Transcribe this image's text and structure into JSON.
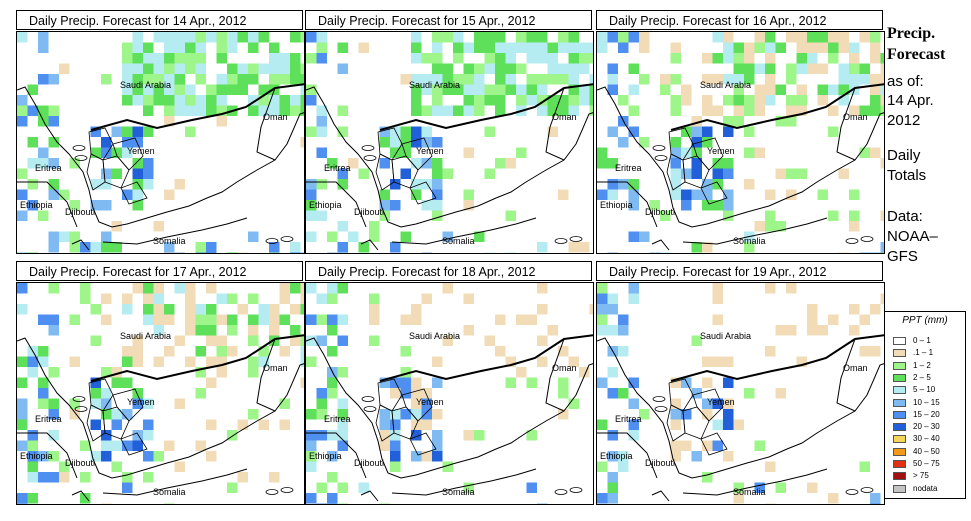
{
  "panels": [
    {
      "title": "Daily Precip. Forecast for  14 Apr., 2012",
      "day": 1
    },
    {
      "title": "Daily Precip. Forecast for  15 Apr., 2012",
      "day": 2
    },
    {
      "title": "Daily Precip. Forecast for  16 Apr., 2012",
      "day": 3
    },
    {
      "title": "Daily Precip. Forecast for  17 Apr., 2012",
      "day": 4
    },
    {
      "title": "Daily Precip. Forecast for  18 Apr., 2012",
      "day": 5
    },
    {
      "title": "Daily Precip. Forecast for  19 Apr., 2012",
      "day": 6
    }
  ],
  "places": {
    "saudi": "Saudi Arabia",
    "oman": "Oman",
    "yemen": "Yemen",
    "eritrea": "Eritrea",
    "ethiopia": "Ethiopia",
    "djibouti": "Djibouti",
    "somalia": "Somalia"
  },
  "side": {
    "title1": "Precip.",
    "title2": "Forecast",
    "asof": "as of:",
    "date1": "14 Apr.",
    "date2": "2012",
    "daily": "Daily",
    "totals": "Totals",
    "data_label": "Data:",
    "source1": "NOAA–",
    "source2": "GFS"
  },
  "legend": {
    "title": "PPT (mm)",
    "items": [
      {
        "label": "0 – 1",
        "color": "#ffffff"
      },
      {
        "label": ".1 – 1",
        "color": "#f2dcb8"
      },
      {
        "label": "1 – 2",
        "color": "#9ef58a"
      },
      {
        "label": "2 – 5",
        "color": "#5fe05a"
      },
      {
        "label": "5 – 10",
        "color": "#b4ecf2"
      },
      {
        "label": "10 – 15",
        "color": "#7fbaf2"
      },
      {
        "label": "15 – 20",
        "color": "#4f8ff0"
      },
      {
        "label": "20 – 30",
        "color": "#2160d8"
      },
      {
        "label": "30 – 40",
        "color": "#f7d45a"
      },
      {
        "label": "40 – 50",
        "color": "#f59a18"
      },
      {
        "label": "50 – 75",
        "color": "#e03018"
      },
      {
        "label": "> 75",
        "color": "#a01010"
      },
      {
        "label": "nodata",
        "color": "#c4c4c4"
      }
    ]
  }
}
